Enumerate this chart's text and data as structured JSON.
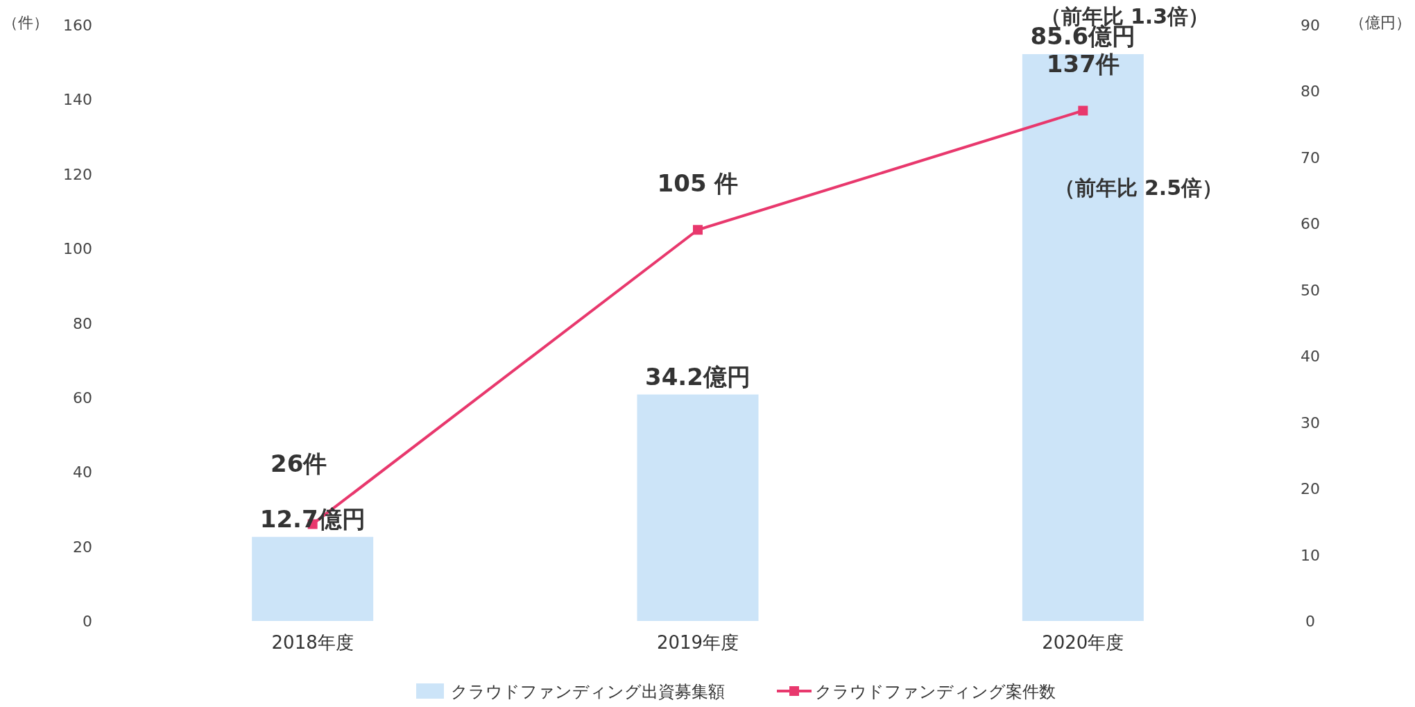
{
  "chart_data": {
    "type": "bar",
    "categories": [
      "2018年度",
      "2019年度",
      "2020年度"
    ],
    "series": [
      {
        "name": "クラウドファンディング出資募集額",
        "axis": "y2",
        "color": "#cce4f8",
        "values": [
          12.7,
          34.2,
          85.6
        ],
        "value_labels": [
          "12.7億円",
          "34.2億円",
          "85.6億円"
        ]
      },
      {
        "name": "クラウドファンディング案件数",
        "type": "line",
        "color": "#e8386d",
        "marker": "square",
        "values": [
          26,
          105,
          137
        ],
        "value_labels": [
          "26件",
          "105 件",
          "137件"
        ]
      }
    ],
    "ylabel": "（件）",
    "y2label": "（億円）",
    "ylim": [
      0,
      160
    ],
    "yticks": [
      0,
      20,
      40,
      60,
      80,
      100,
      120,
      140,
      160
    ],
    "y2lim": [
      0,
      90
    ],
    "y2ticks": [
      0,
      10,
      20,
      30,
      40,
      50,
      60,
      70,
      80,
      90
    ],
    "annotations": [
      "（前年比  1.3倍）",
      "（前年比  2.5倍）"
    ],
    "legend": "bottom",
    "grid": false
  }
}
